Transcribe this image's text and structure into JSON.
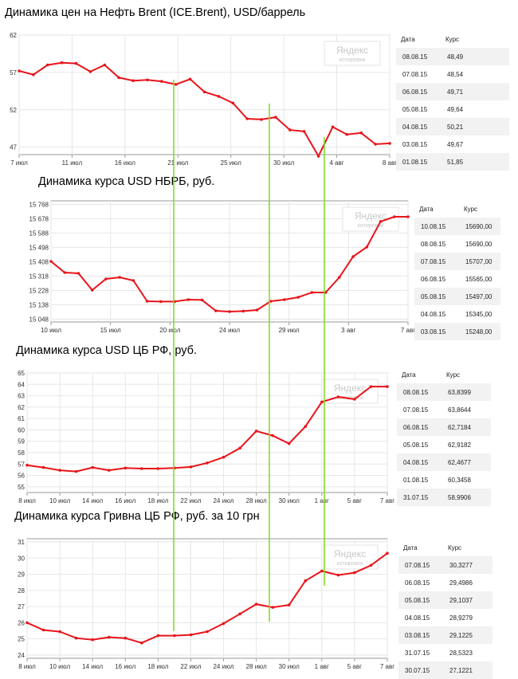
{
  "watermark": {
    "brand": "Яндекс",
    "sub": "котировки"
  },
  "colors": {
    "line": "#e8141a",
    "guide": "#7ddc1f",
    "grid": "#e6e6e6",
    "axis": "#9a9a9a"
  },
  "panels": [
    {
      "title": "Динамика цен на Нефть Brent (ICE.Brent), USD/баррель",
      "chart_data": {
        "type": "line",
        "title": "Динамика цен на Нефть Brent (ICE.Brent), USD/баррель",
        "yticks": [
          "62",
          "57",
          "52",
          "47"
        ],
        "ytick_values": [
          62,
          57,
          52,
          47
        ],
        "xticks": [
          "7 июл",
          "11 июл",
          "16 июл",
          "21 июл",
          "25 июл",
          "30 июл",
          "4 авг",
          "8 авг"
        ],
        "ylim": [
          46,
          62
        ],
        "values": [
          57.2,
          56.7,
          58.0,
          58.3,
          58.2,
          57.1,
          58.0,
          56.3,
          55.9,
          56.0,
          55.8,
          55.4,
          56.1,
          54.4,
          53.8,
          52.9,
          50.8,
          50.7,
          51.0,
          49.3,
          49.1,
          45.8,
          49.7,
          48.7,
          48.9,
          47.4,
          47.5
        ],
        "grid": true,
        "legend": "none"
      },
      "table": {
        "headers": [
          "Дата",
          "Курс"
        ],
        "rows": [
          [
            "08.08.15",
            "48,49"
          ],
          [
            "07.08.15",
            "48,54"
          ],
          [
            "06.08.15",
            "49,71"
          ],
          [
            "05.08.15",
            "49,64"
          ],
          [
            "04.08.15",
            "50,21"
          ],
          [
            "03.08.15",
            "49,67"
          ],
          [
            "01.08.15",
            "51,85"
          ]
        ]
      }
    },
    {
      "title": "Динамика курса USD НБРБ, руб.",
      "chart_data": {
        "type": "line",
        "title": "Динамика курса USD НБРБ, руб.",
        "yticks": [
          "15 768",
          "15 678",
          "15 588",
          "15 498",
          "15 408",
          "15 318",
          "15 228",
          "15 138",
          "15 048"
        ],
        "ytick_values": [
          15768,
          15678,
          15588,
          15498,
          15408,
          15318,
          15228,
          15138,
          15048
        ],
        "xticks": [
          "10 июл",
          "15 июл",
          "20 июл",
          "24 июл",
          "29 июл",
          "3 авг",
          "7 авг"
        ],
        "ylim": [
          15030,
          15790
        ],
        "values": [
          15410,
          15340,
          15335,
          15230,
          15300,
          15310,
          15290,
          15160,
          15158,
          15158,
          15170,
          15168,
          15100,
          15095,
          15098,
          15105,
          15160,
          15170,
          15185,
          15215,
          15215,
          15310,
          15440,
          15500,
          15660,
          15690,
          15690
        ],
        "grid": true,
        "legend": "none"
      },
      "table": {
        "headers": [
          "Дата",
          "Курс"
        ],
        "rows": [
          [
            "10.08.15",
            "15690,00"
          ],
          [
            "08.08.15",
            "15690,00"
          ],
          [
            "07.08.15",
            "15707,00"
          ],
          [
            "06.08.15",
            "15565,00"
          ],
          [
            "05.08.15",
            "15497,00"
          ],
          [
            "04.08.15",
            "15345,00"
          ],
          [
            "03.08.15",
            "15248,00"
          ]
        ]
      }
    },
    {
      "title": "Динамика курса USD ЦБ РФ, руб.",
      "chart_data": {
        "type": "line",
        "title": "Динамика курса USD ЦБ РФ, руб.",
        "yticks": [
          "65",
          "64",
          "63",
          "62",
          "61",
          "60",
          "59",
          "58",
          "57",
          "56",
          "55"
        ],
        "ytick_values": [
          65,
          64,
          63,
          62,
          61,
          60,
          59,
          58,
          57,
          56,
          55
        ],
        "xticks": [
          "8 июл",
          "10 июл",
          "14 июл",
          "16 июл",
          "18 июл",
          "22 июл",
          "24 июл",
          "28 июл",
          "30 июл",
          "1 авг",
          "5 авг",
          "7 авг"
        ],
        "ylim": [
          54.5,
          65
        ],
        "values": [
          56.9,
          56.7,
          56.45,
          56.35,
          56.7,
          56.45,
          56.65,
          56.6,
          56.6,
          56.65,
          56.75,
          57.1,
          57.6,
          58.4,
          59.9,
          59.5,
          58.8,
          60.3,
          62.45,
          62.9,
          62.7,
          63.8,
          63.8
        ],
        "grid": true,
        "legend": "none"
      },
      "table": {
        "headers": [
          "Дата",
          "Курс"
        ],
        "rows": [
          [
            "08.08.15",
            "63,8399"
          ],
          [
            "07.08.15",
            "63,8644"
          ],
          [
            "06.08.15",
            "62,7184"
          ],
          [
            "05.08.15",
            "62,9182"
          ],
          [
            "04.08.15",
            "62,4677"
          ],
          [
            "01.08.15",
            "60,3458"
          ],
          [
            "31.07.15",
            "58,9906"
          ]
        ]
      }
    },
    {
      "title": "Динамика курса Гривна ЦБ РФ, руб. за 10 грн",
      "chart_data": {
        "type": "line",
        "title": "Динамика курса Гривна ЦБ РФ, руб. за 10 грн",
        "yticks": [
          "31",
          "30",
          "29",
          "28",
          "27",
          "26",
          "25",
          "24"
        ],
        "ytick_values": [
          31,
          30,
          29,
          28,
          27,
          26,
          25,
          24
        ],
        "xticks": [
          "8 июл",
          "10 июл",
          "14 июл",
          "16 июл",
          "18 июл",
          "22 июл",
          "24 июл",
          "28 июл",
          "30 июл",
          "1 авг",
          "5 авг",
          "7 авг"
        ],
        "ylim": [
          23.8,
          31.2
        ],
        "values": [
          26.0,
          25.55,
          25.45,
          25.05,
          24.95,
          25.1,
          25.05,
          24.75,
          25.2,
          25.2,
          25.25,
          25.45,
          25.95,
          26.55,
          27.15,
          26.95,
          27.1,
          28.6,
          29.2,
          28.95,
          29.1,
          29.55,
          30.3
        ],
        "grid": true,
        "legend": "none"
      },
      "table": {
        "headers": [
          "Дата",
          "Курс"
        ],
        "rows": [
          [
            "07.08.15",
            "30,3277"
          ],
          [
            "06.08.15",
            "29,4986"
          ],
          [
            "05.08.15",
            "29,1037"
          ],
          [
            "04.08.15",
            "28,9279"
          ],
          [
            "03.08.15",
            "29,1225"
          ],
          [
            "31.07.15",
            "28,5323"
          ],
          [
            "30.07.15",
            "27,1221"
          ]
        ]
      }
    }
  ]
}
